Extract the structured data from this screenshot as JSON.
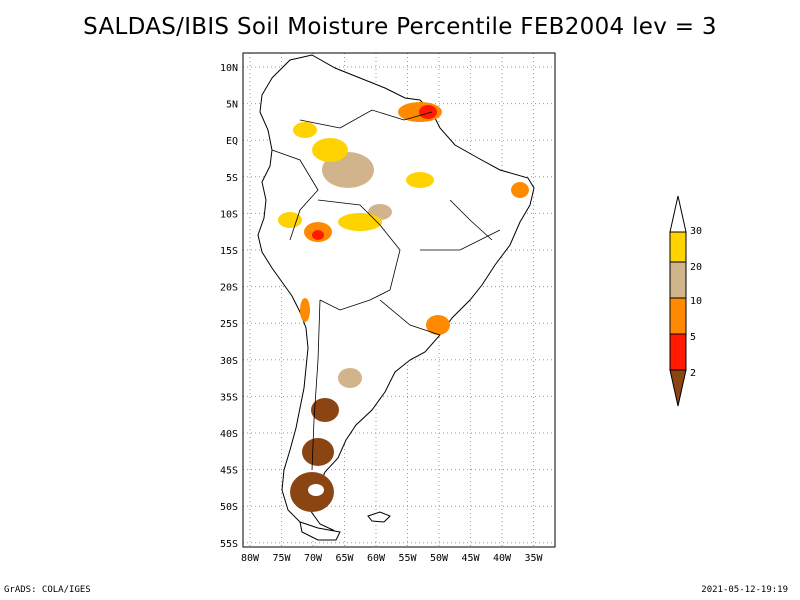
{
  "title": "SALDAS/IBIS Soil Moisture Percentile FEB2004 lev = 3",
  "map": {
    "lon_labels": [
      "80W",
      "75W",
      "70W",
      "65W",
      "60W",
      "55W",
      "50W",
      "45W",
      "40W",
      "35W"
    ],
    "lat_labels": [
      "10N",
      "5N",
      "EQ",
      "5S",
      "10S",
      "15S",
      "20S",
      "25S",
      "30S",
      "35S",
      "40S",
      "45S",
      "50S",
      "55S"
    ]
  },
  "legend": {
    "labels": [
      "30",
      "20",
      "10",
      "5",
      "2"
    ],
    "colors": {
      "above_30": "#ffffff",
      "20_30": "#ffd300",
      "10_20": "#d2b48c",
      "5_10": "#ff8a00",
      "2_5": "#ff1a00",
      "below_2": "#8b4513"
    }
  },
  "footer": {
    "left": "GrADS: COLA/IGES",
    "right": "2021-05-12-19:19"
  }
}
